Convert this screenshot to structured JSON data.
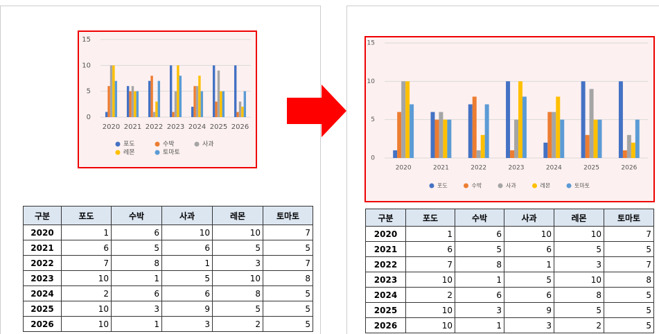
{
  "chart_data": [
    {
      "type": "bar",
      "categories": [
        "2020",
        "2021",
        "2022",
        "2023",
        "2024",
        "2025",
        "2026"
      ],
      "series": [
        {
          "name": "포도",
          "color": "#4472c4",
          "values": [
            1,
            6,
            7,
            10,
            2,
            10,
            10
          ]
        },
        {
          "name": "수박",
          "color": "#ed7d31",
          "values": [
            6,
            5,
            8,
            1,
            6,
            3,
            1
          ]
        },
        {
          "name": "사과",
          "color": "#a5a5a5",
          "values": [
            10,
            6,
            1,
            5,
            6,
            9,
            3
          ]
        },
        {
          "name": "레몬",
          "color": "#ffc000",
          "values": [
            10,
            5,
            3,
            10,
            8,
            5,
            2
          ]
        },
        {
          "name": "토마토",
          "color": "#5b9bd5",
          "values": [
            7,
            5,
            7,
            8,
            5,
            5,
            5
          ]
        }
      ],
      "ylim": [
        0,
        15
      ],
      "yticks": [
        0,
        5,
        10,
        15
      ],
      "grid": true,
      "legend": "bottom"
    },
    {
      "type": "bar",
      "categories": [
        "2020",
        "2021",
        "2022",
        "2023",
        "2024",
        "2025",
        "2026"
      ],
      "series": [
        {
          "name": "포도",
          "color": "#4472c4",
          "values": [
            1,
            6,
            7,
            10,
            2,
            10,
            10
          ]
        },
        {
          "name": "수박",
          "color": "#ed7d31",
          "values": [
            6,
            5,
            8,
            1,
            6,
            3,
            1
          ]
        },
        {
          "name": "사과",
          "color": "#a5a5a5",
          "values": [
            10,
            6,
            1,
            5,
            6,
            9,
            3
          ]
        },
        {
          "name": "레몬",
          "color": "#ffc000",
          "values": [
            10,
            5,
            3,
            10,
            8,
            5,
            2
          ]
        },
        {
          "name": "토마토",
          "color": "#5b9bd5",
          "values": [
            7,
            5,
            7,
            8,
            5,
            5,
            5
          ]
        }
      ],
      "ylim": [
        0,
        15
      ],
      "yticks": [
        0,
        5,
        10,
        15
      ],
      "grid": true,
      "legend": "bottom"
    }
  ],
  "tables": [
    {
      "header": [
        "구분",
        "포도",
        "수박",
        "사과",
        "레몬",
        "토마토"
      ],
      "rows": [
        [
          "2020",
          1,
          6,
          10,
          10,
          7
        ],
        [
          "2021",
          6,
          5,
          6,
          5,
          5
        ],
        [
          "2022",
          7,
          8,
          1,
          3,
          7
        ],
        [
          "2023",
          10,
          1,
          5,
          10,
          8
        ],
        [
          "2024",
          2,
          6,
          6,
          8,
          5
        ],
        [
          "2025",
          10,
          3,
          9,
          5,
          5
        ],
        [
          "2026",
          10,
          1,
          3,
          2,
          5
        ]
      ]
    },
    {
      "header": [
        "구분",
        "포도",
        "수박",
        "사과",
        "레몬",
        "토마토"
      ],
      "rows": [
        [
          "2020",
          1,
          6,
          10,
          10,
          7
        ],
        [
          "2021",
          6,
          5,
          6,
          5,
          5
        ],
        [
          "2022",
          7,
          8,
          1,
          3,
          7
        ],
        [
          "2023",
          10,
          1,
          5,
          10,
          8
        ],
        [
          "2024",
          2,
          6,
          6,
          8,
          5
        ],
        [
          "2025",
          10,
          3,
          9,
          5,
          5
        ],
        [
          "2026",
          10,
          1,
          3,
          2,
          5
        ]
      ]
    }
  ]
}
